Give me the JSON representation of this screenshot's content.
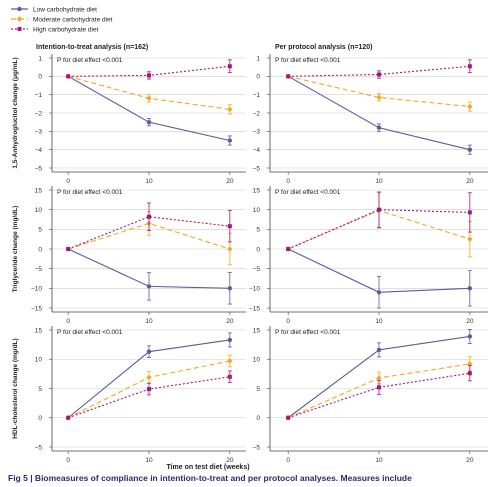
{
  "caption": "Fig 5 | Biomeasures of compliance in intention-to-treat and per protocol analyses. Measures include",
  "colors": {
    "low": "#5c5b9b",
    "moderate": "#f4a623",
    "high": "#a2197b",
    "axis": "#444444",
    "grid": "#cfcfcf"
  },
  "legend": [
    {
      "name": "Low carbohydrate diet",
      "style": "solid",
      "color": "#5c5b9b"
    },
    {
      "name": "Moderate carbohydrate diet",
      "style": "dashed",
      "color": "#f4a623"
    },
    {
      "name": "High carbohydrate diet",
      "style": "dotted",
      "color": "#a2197b"
    }
  ],
  "columns": [
    "Intention-to-treat analysis (n=162)",
    "Per protocol analysis (n=120)"
  ],
  "xlabel": "Time on test diet (weeks)",
  "chart_data": [
    {
      "type": "line",
      "row": 0,
      "col": 0,
      "ylabel": "1,5-Anhydroglucitol change (μg/mL)",
      "annotation": "P for diet effect <0.001",
      "x": [
        0,
        10,
        20
      ],
      "xlim": [
        -2,
        22
      ],
      "xticks": [
        0,
        10,
        20
      ],
      "ylim": [
        -5,
        1
      ],
      "yticks": [
        -5,
        -4,
        -3,
        -2,
        -1,
        0,
        1
      ],
      "grid": true,
      "series": [
        {
          "name": "Low carbohydrate diet",
          "values": [
            0,
            -2.5,
            -3.5
          ],
          "err": [
            0,
            0.2,
            0.25
          ]
        },
        {
          "name": "Moderate carbohydrate diet",
          "values": [
            0,
            -1.2,
            -1.8
          ],
          "err": [
            0,
            0.2,
            0.25
          ]
        },
        {
          "name": "High carbohydrate diet",
          "values": [
            0,
            0.05,
            0.55
          ],
          "err": [
            0,
            0.2,
            0.35
          ]
        }
      ]
    },
    {
      "type": "line",
      "row": 0,
      "col": 1,
      "ylabel": "",
      "annotation": "P for diet effect <0.001",
      "x": [
        0,
        10,
        20
      ],
      "xlim": [
        -2,
        22
      ],
      "xticks": [
        0,
        10,
        20
      ],
      "ylim": [
        -5,
        1
      ],
      "yticks": [
        -5,
        -4,
        -3,
        -2,
        -1,
        0,
        1
      ],
      "grid": true,
      "series": [
        {
          "name": "Low carbohydrate diet",
          "values": [
            0,
            -2.8,
            -4.0
          ],
          "err": [
            0,
            0.2,
            0.25
          ]
        },
        {
          "name": "Moderate carbohydrate diet",
          "values": [
            0,
            -1.15,
            -1.65
          ],
          "err": [
            0,
            0.2,
            0.25
          ]
        },
        {
          "name": "High carbohydrate diet",
          "values": [
            0,
            0.1,
            0.55
          ],
          "err": [
            0,
            0.2,
            0.35
          ]
        }
      ]
    },
    {
      "type": "line",
      "row": 1,
      "col": 0,
      "ylabel": "Triglyceride change (mg/dL)",
      "annotation": "P for diet effect <0.001",
      "x": [
        0,
        10,
        20
      ],
      "xlim": [
        -2,
        22
      ],
      "xticks": [
        0,
        10,
        20
      ],
      "ylim": [
        -15,
        15
      ],
      "yticks": [
        -15,
        -10,
        -5,
        0,
        5,
        10,
        15
      ],
      "grid": true,
      "series": [
        {
          "name": "Low carbohydrate diet",
          "values": [
            0,
            -9.5,
            -10
          ],
          "err": [
            0,
            3.5,
            4
          ]
        },
        {
          "name": "Moderate carbohydrate diet",
          "values": [
            0,
            6.5,
            0
          ],
          "err": [
            0,
            3.0,
            4
          ]
        },
        {
          "name": "High carbohydrate diet",
          "values": [
            0,
            8.2,
            5.8
          ],
          "err": [
            0,
            3.5,
            4
          ]
        }
      ]
    },
    {
      "type": "line",
      "row": 1,
      "col": 1,
      "ylabel": "",
      "annotation": "P for diet effect <0.001",
      "x": [
        0,
        10,
        20
      ],
      "xlim": [
        -2,
        22
      ],
      "xticks": [
        0,
        10,
        20
      ],
      "ylim": [
        -15,
        15
      ],
      "yticks": [
        -15,
        -10,
        -5,
        0,
        5,
        10,
        15
      ],
      "grid": true,
      "series": [
        {
          "name": "Low carbohydrate diet",
          "values": [
            0,
            -11,
            -10
          ],
          "err": [
            0,
            4,
            4.5
          ]
        },
        {
          "name": "Moderate carbohydrate diet",
          "values": [
            0,
            9.8,
            2.5
          ],
          "err": [
            0,
            4.5,
            4.5
          ]
        },
        {
          "name": "High carbohydrate diet",
          "values": [
            0,
            10,
            9.3
          ],
          "err": [
            0,
            4.5,
            5
          ]
        }
      ]
    },
    {
      "type": "line",
      "row": 2,
      "col": 0,
      "ylabel": "HDL-cholesterol change (mg/dL)",
      "annotation": "P for diet effect <0.001",
      "x": [
        0,
        10,
        20
      ],
      "xlim": [
        -2,
        22
      ],
      "xticks": [
        0,
        10,
        20
      ],
      "ylim": [
        -5,
        15
      ],
      "yticks": [
        -5,
        0,
        5,
        10,
        15
      ],
      "grid": true,
      "series": [
        {
          "name": "Low carbohydrate diet",
          "values": [
            0,
            11.3,
            13.3
          ],
          "err": [
            0,
            1.0,
            1.2
          ]
        },
        {
          "name": "Moderate carbohydrate diet",
          "values": [
            0,
            6.9,
            9.7
          ],
          "err": [
            0,
            1.0,
            1.0
          ]
        },
        {
          "name": "High carbohydrate diet",
          "values": [
            0,
            4.9,
            7.0
          ],
          "err": [
            0,
            1.0,
            1.0
          ]
        }
      ]
    },
    {
      "type": "line",
      "row": 2,
      "col": 1,
      "ylabel": "",
      "annotation": "P for diet effect <0.001",
      "x": [
        0,
        10,
        20
      ],
      "xlim": [
        -2,
        22
      ],
      "xticks": [
        0,
        10,
        20
      ],
      "ylim": [
        -5,
        15
      ],
      "yticks": [
        -5,
        0,
        5,
        10,
        15
      ],
      "grid": true,
      "series": [
        {
          "name": "Low carbohydrate diet",
          "values": [
            0,
            11.6,
            13.9
          ],
          "err": [
            0,
            1.2,
            1.2
          ]
        },
        {
          "name": "Moderate carbohydrate diet",
          "values": [
            0,
            6.8,
            9.2
          ],
          "err": [
            0,
            1.0,
            1.2
          ]
        },
        {
          "name": "High carbohydrate diet",
          "values": [
            0,
            5.2,
            7.6
          ],
          "err": [
            0,
            1.2,
            1.3
          ]
        }
      ]
    }
  ]
}
